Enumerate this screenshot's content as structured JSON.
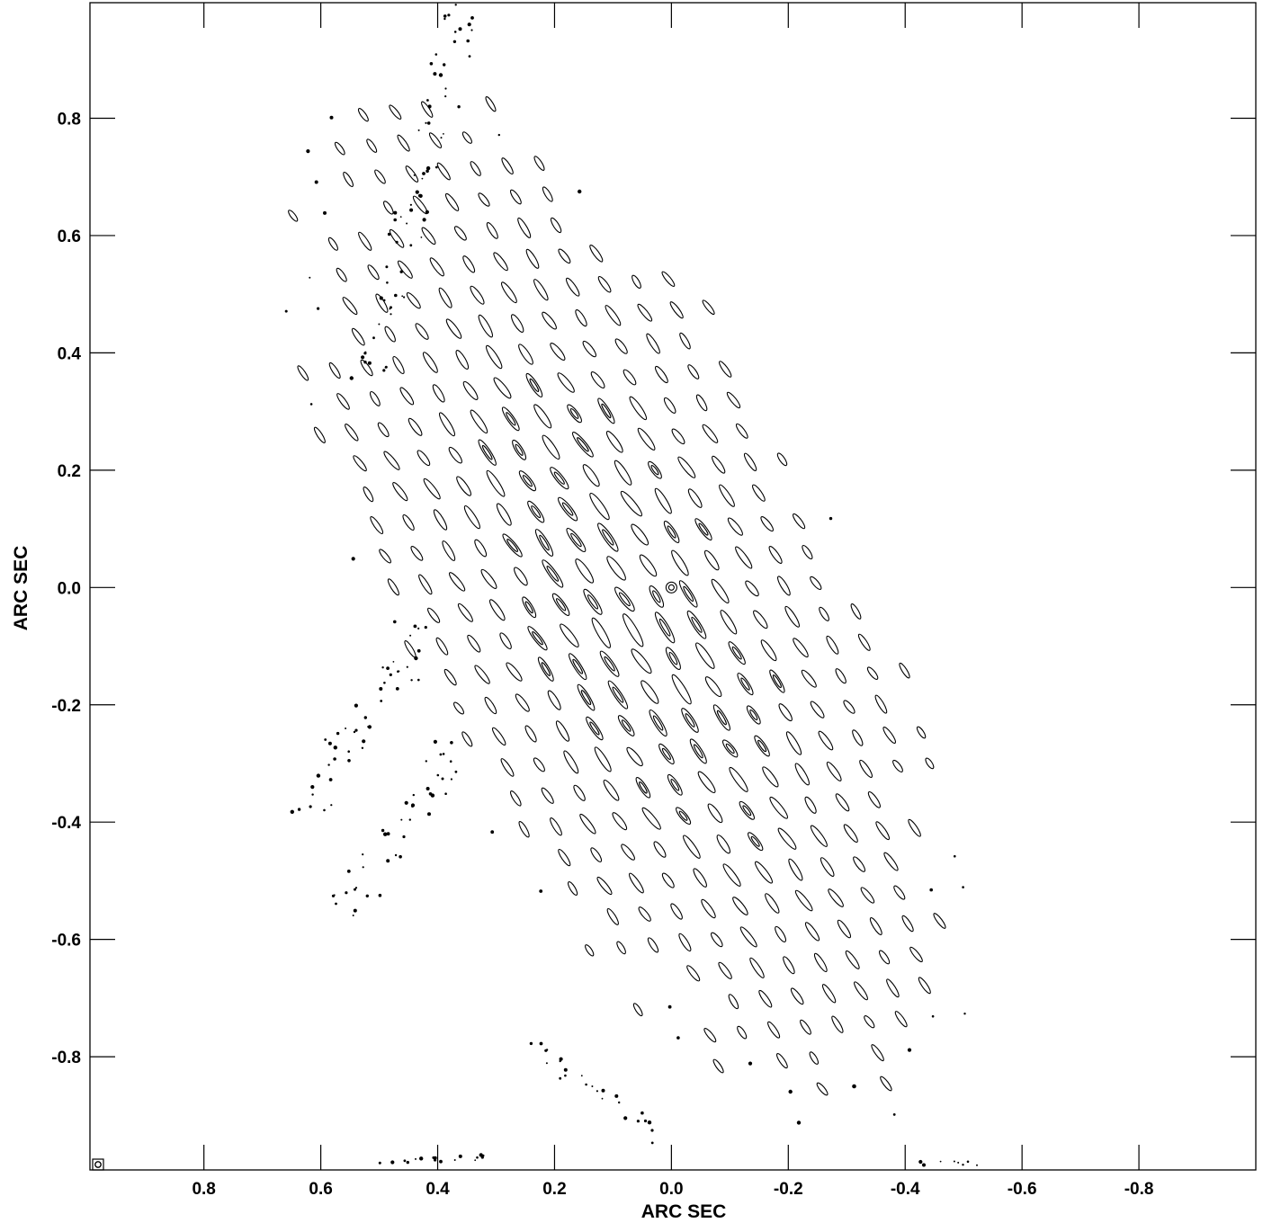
{
  "chart_data": {
    "type": "contour",
    "xlabel": "ARC SEC",
    "ylabel": "ARC SEC",
    "xlim": [
      0.995,
      -1.0
    ],
    "ylim": [
      -0.993,
      0.997
    ],
    "x_reversed": true,
    "x_ticks": [
      0.8,
      0.6,
      0.4,
      0.2,
      0.0,
      -0.2,
      -0.4,
      -0.6,
      -0.8
    ],
    "y_ticks": [
      0.8,
      0.6,
      0.4,
      0.2,
      0.0,
      -0.2,
      -0.4,
      -0.6,
      -0.8
    ],
    "x_tick_labels": [
      "0.8",
      "0.6",
      "0.4",
      "0.2",
      "0.0",
      "-0.2",
      "-0.4",
      "-0.6",
      "-0.8"
    ],
    "y_tick_labels": [
      "0.8",
      "0.6",
      "0.4",
      "0.2",
      "0.0",
      "-0.2",
      "-0.4",
      "-0.6",
      "-0.8"
    ],
    "pattern": {
      "peak": [
        0.0,
        0.0
      ],
      "envelope_center": [
        0.08,
        -0.02
      ],
      "envelope_semi_major": 0.92,
      "envelope_semi_minor": 0.36,
      "envelope_angle_deg": 62,
      "fringe_angle_deg": 125,
      "fringe_spacing": 0.042,
      "along_spacing": 0.07
    },
    "beam_marker": "bottom-left",
    "grid": false,
    "legend": "none"
  }
}
